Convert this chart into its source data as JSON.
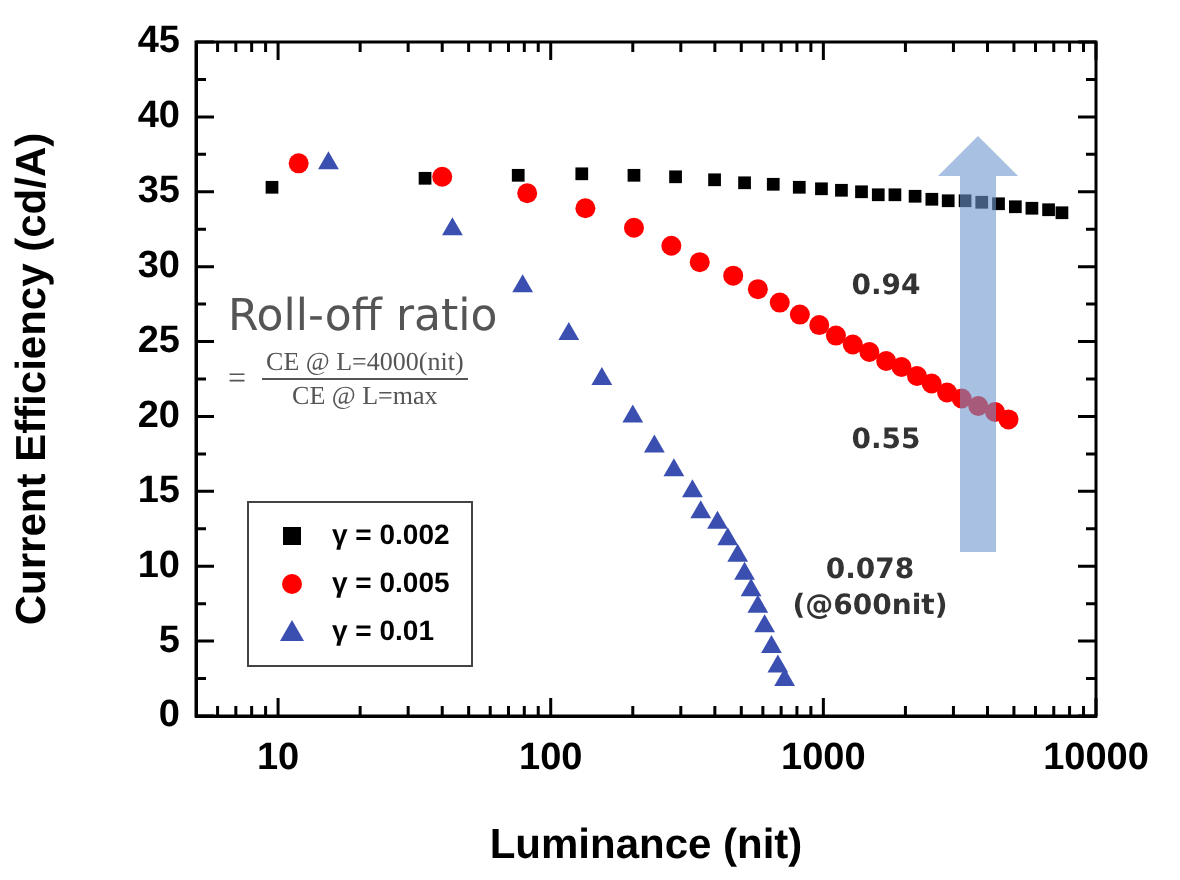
{
  "chart_data": {
    "type": "scatter",
    "xlabel": "Luminance (nit)",
    "ylabel": "Current Efficiency (cd/A)",
    "log": "x",
    "xlim": [
      5,
      10000
    ],
    "xticks": [
      {
        "value": 6,
        "label": null
      },
      {
        "value": 7,
        "label": null
      },
      {
        "value": 8,
        "label": null
      },
      {
        "value": 9,
        "label": null
      },
      10,
      {
        "value": 20,
        "label": null
      },
      {
        "value": 30,
        "label": null
      },
      {
        "value": 40,
        "label": null
      },
      {
        "value": 50,
        "label": null
      },
      {
        "value": 60,
        "label": null
      },
      {
        "value": 70,
        "label": null
      },
      {
        "value": 80,
        "label": null
      },
      {
        "value": 90,
        "label": null
      },
      100,
      {
        "value": 200,
        "label": null
      },
      {
        "value": 300,
        "label": null
      },
      {
        "value": 400,
        "label": null
      },
      {
        "value": 500,
        "label": null
      },
      {
        "value": 600,
        "label": null
      },
      {
        "value": 700,
        "label": null
      },
      {
        "value": 800,
        "label": null
      },
      {
        "value": 900,
        "label": null
      },
      1000,
      {
        "value": 2000,
        "label": null
      },
      {
        "value": 3000,
        "label": null
      },
      {
        "value": 4000,
        "label": null
      },
      {
        "value": 5000,
        "label": null
      },
      {
        "value": 6000,
        "label": null
      },
      {
        "value": 7000,
        "label": null
      },
      {
        "value": 8000,
        "label": null
      },
      {
        "value": 9000,
        "label": null
      },
      10000
    ],
    "ylim": [
      0,
      45
    ],
    "yticks": [
      0,
      {
        "value": 2.5,
        "label": null
      },
      5,
      {
        "value": 7.5,
        "label": null
      },
      10,
      {
        "value": 12.5,
        "label": null
      },
      15,
      {
        "value": 17.5,
        "label": null
      },
      20,
      {
        "value": 22.5,
        "label": null
      },
      25,
      {
        "value": 27.5,
        "label": null
      },
      30,
      {
        "value": 32.5,
        "label": null
      },
      35,
      {
        "value": 37.5,
        "label": null
      },
      40,
      {
        "value": 42.5,
        "label": null
      },
      45
    ],
    "grid": false,
    "legend": "bottom left",
    "series": [
      {
        "name": "γ = 0.002",
        "color": "#000000",
        "marker": "square",
        "x": [
          9.5,
          34.6,
          76,
          130,
          202,
          287,
          399,
          514,
          655,
          816,
          984,
          1165,
          1380,
          1590,
          1830,
          2170,
          2500,
          2870,
          3310,
          3810,
          4390,
          5060,
          5820,
          6700,
          7500
        ],
        "values": [
          35.3,
          35.9,
          36.1,
          36.2,
          36.1,
          36.0,
          35.8,
          35.6,
          35.5,
          35.3,
          35.2,
          35.1,
          35.0,
          34.8,
          34.8,
          34.7,
          34.5,
          34.4,
          34.4,
          34.3,
          34.2,
          34.0,
          33.9,
          33.8,
          33.6
        ]
      },
      {
        "name": "γ = 0.005",
        "color": "#ff0000",
        "marker": "circle",
        "x": [
          11.9,
          40,
          82,
          134,
          202,
          277,
          352,
          467,
          575,
          692,
          820,
          966,
          1112,
          1282,
          1475,
          1700,
          1935,
          2205,
          2495,
          2843,
          3215,
          3700,
          4265,
          4775
        ],
        "values": [
          36.9,
          36.0,
          34.9,
          33.9,
          32.6,
          31.4,
          30.3,
          29.4,
          28.5,
          27.6,
          26.8,
          26.1,
          25.4,
          24.8,
          24.3,
          23.7,
          23.3,
          22.7,
          22.2,
          21.6,
          21.2,
          20.7,
          20.3,
          19.8
        ]
      },
      {
        "name": "γ = 0.01",
        "color": "#3a4fb0",
        "marker": "triangle",
        "x": [
          15.3,
          43.6,
          78.9,
          116.5,
          154,
          200,
          240,
          283,
          331,
          355,
          409,
          446,
          485,
          514,
          543,
          575,
          609,
          645,
          681,
          721
        ],
        "values": [
          36.9,
          32.5,
          28.7,
          25.5,
          22.5,
          20.0,
          18.0,
          16.4,
          15.0,
          13.6,
          12.9,
          11.8,
          10.7,
          9.5,
          8.4,
          7.3,
          6.0,
          4.6,
          3.3,
          2.4
        ]
      }
    ],
    "annotations": [
      "Roll-off ratio",
      "=",
      "CE @ L=4000(nit)",
      "CE @ L=max",
      "0.94",
      "0.55",
      "0.078\n(@600nit)"
    ]
  }
}
